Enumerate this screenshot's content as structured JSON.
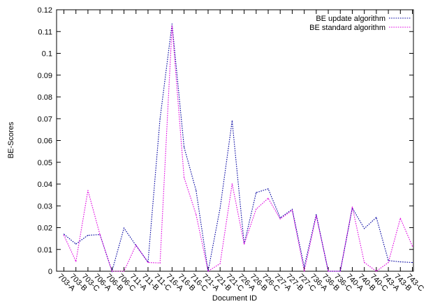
{
  "chart_data": {
    "type": "line",
    "xlabel": "Document ID",
    "ylabel": "BE-Scores",
    "ylim": [
      0,
      0.12
    ],
    "yticks": [
      "0",
      "0.01",
      "0.02",
      "0.03",
      "0.04",
      "0.05",
      "0.06",
      "0.07",
      "0.08",
      "0.09",
      "0.1",
      "0.11",
      "0.12"
    ],
    "categories": [
      "703-A",
      "703-B",
      "703-C",
      "706-A",
      "706-B",
      "706-C",
      "711-A",
      "711-B",
      "711-C",
      "716-A",
      "716-B",
      "716-C",
      "721-A",
      "721-B",
      "721-C",
      "726-A",
      "726-B",
      "726-C",
      "727-A",
      "727-B",
      "727-C",
      "736-A",
      "736-B",
      "736-C",
      "740-A",
      "740-B",
      "740-C",
      "743-A",
      "743-B",
      "743-C"
    ],
    "legend_position": "top-right",
    "grid": false,
    "series": [
      {
        "name": "BE update algorithm",
        "color": "#0000a0",
        "dash": "dotted",
        "values": [
          0.017,
          0.0125,
          0.0165,
          0.0168,
          0.0,
          0.0198,
          0.0118,
          0.0042,
          0.07,
          0.1135,
          0.057,
          0.037,
          0.0,
          0.029,
          0.069,
          0.0125,
          0.0361,
          0.0378,
          0.0245,
          0.0284,
          0.002,
          0.026,
          0.0,
          0.0,
          0.029,
          0.0196,
          0.0247,
          0.0049,
          0.0043,
          0.004
        ]
      },
      {
        "name": "BE standard algorithm",
        "color": "#e000e0",
        "dash": "dotted",
        "values": [
          0.0165,
          0.0045,
          0.0371,
          0.0168,
          0.0,
          0.0,
          0.012,
          0.004,
          0.0038,
          0.1125,
          0.043,
          0.026,
          0.0,
          0.0035,
          0.0401,
          0.0125,
          0.0285,
          0.0335,
          0.024,
          0.028,
          0.0,
          0.0255,
          0.0,
          0.0,
          0.0295,
          0.004,
          0.0,
          0.004,
          0.0243,
          0.0115
        ]
      }
    ]
  }
}
